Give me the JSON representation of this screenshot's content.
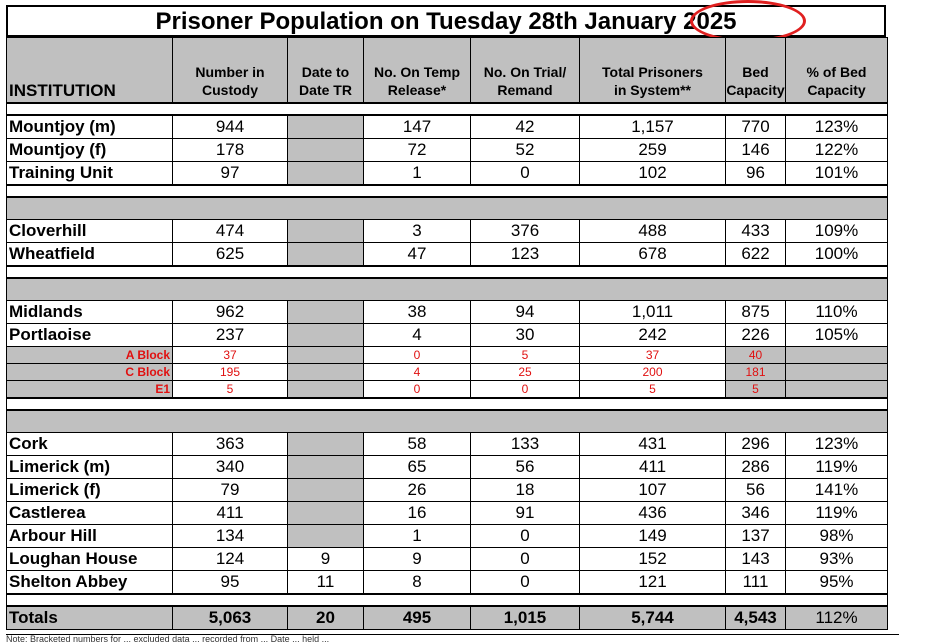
{
  "title": "Prisoner Population on Tuesday 28th January 2025",
  "headers": {
    "institution": "INSTITUTION",
    "custody": [
      "Number in",
      "Custody"
    ],
    "date_tr": [
      "Date to",
      "Date TR"
    ],
    "temp": [
      "No. On Temp",
      "Release*"
    ],
    "trial": [
      "No. On Trial/",
      "Remand"
    ],
    "total": [
      "Total Prisoners",
      "in System**"
    ],
    "bed": [
      "Bed",
      "Capacity"
    ],
    "pct": [
      "% of Bed",
      "Capacity"
    ]
  },
  "groups": [
    {
      "rows": [
        {
          "name": "Mountjoy (m)",
          "custody": "944",
          "date_tr": "",
          "temp": "147",
          "trial": "42",
          "total": "1,157",
          "bed": "770",
          "pct": "123%"
        },
        {
          "name": "Mountjoy (f)",
          "custody": "178",
          "date_tr": "",
          "temp": "72",
          "trial": "52",
          "total": "259",
          "bed": "146",
          "pct": "122%"
        },
        {
          "name": "Training Unit",
          "custody": "97",
          "date_tr": "",
          "temp": "1",
          "trial": "0",
          "total": "102",
          "bed": "96",
          "pct": "101%"
        }
      ]
    },
    {
      "rows": [
        {
          "name": "Cloverhill",
          "custody": "474",
          "date_tr": "",
          "temp": "3",
          "trial": "376",
          "total": "488",
          "bed": "433",
          "pct": "109%"
        },
        {
          "name": "Wheatfield",
          "custody": "625",
          "date_tr": "",
          "temp": "47",
          "trial": "123",
          "total": "678",
          "bed": "622",
          "pct": "100%"
        }
      ]
    },
    {
      "rows": [
        {
          "name": "Midlands",
          "custody": "962",
          "date_tr": "",
          "temp": "38",
          "trial": "94",
          "total": "1,011",
          "bed": "875",
          "pct": "110%"
        },
        {
          "name": "Portlaoise",
          "custody": "237",
          "date_tr": "",
          "temp": "4",
          "trial": "30",
          "total": "242",
          "bed": "226",
          "pct": "105%"
        }
      ],
      "blocks": [
        {
          "name": "A Block",
          "custody": "37",
          "temp": "0",
          "trial": "5",
          "total": "37",
          "bed": "40"
        },
        {
          "name": "C Block",
          "custody": "195",
          "temp": "4",
          "trial": "25",
          "total": "200",
          "bed": "181"
        },
        {
          "name": "E1",
          "custody": "5",
          "temp": "0",
          "trial": "0",
          "total": "5",
          "bed": "5"
        }
      ]
    },
    {
      "rows": [
        {
          "name": "Cork",
          "custody": "363",
          "date_tr": "",
          "temp": "58",
          "trial": "133",
          "total": "431",
          "bed": "296",
          "pct": "123%"
        },
        {
          "name": "Limerick (m)",
          "custody": "340",
          "date_tr": "",
          "temp": "65",
          "trial": "56",
          "total": "411",
          "bed": "286",
          "pct": "119%"
        },
        {
          "name": "Limerick (f)",
          "custody": "79",
          "date_tr": "",
          "temp": "26",
          "trial": "18",
          "total": "107",
          "bed": "56",
          "pct": "141%"
        },
        {
          "name": "Castlerea",
          "custody": "411",
          "date_tr": "",
          "temp": "16",
          "trial": "91",
          "total": "436",
          "bed": "346",
          "pct": "119%"
        },
        {
          "name": "Arbour Hill",
          "custody": "134",
          "date_tr": "",
          "temp": "1",
          "trial": "0",
          "total": "149",
          "bed": "137",
          "pct": "98%"
        },
        {
          "name": "Loughan House",
          "custody": "124",
          "date_tr": "9",
          "temp": "9",
          "trial": "0",
          "total": "152",
          "bed": "143",
          "pct": "93%"
        },
        {
          "name": "Shelton Abbey",
          "custody": "95",
          "date_tr": "11",
          "temp": "8",
          "trial": "0",
          "total": "121",
          "bed": "111",
          "pct": "95%"
        }
      ]
    }
  ],
  "totals": {
    "name": "Totals",
    "custody": "5,063",
    "date_tr": "20",
    "temp": "495",
    "trial": "1,015",
    "total": "5,744",
    "bed": "4,543",
    "pct": "112%"
  },
  "footnote": "Note: Bracketed numbers for ... excluded data ... recorded from ... Date ... held ..."
}
